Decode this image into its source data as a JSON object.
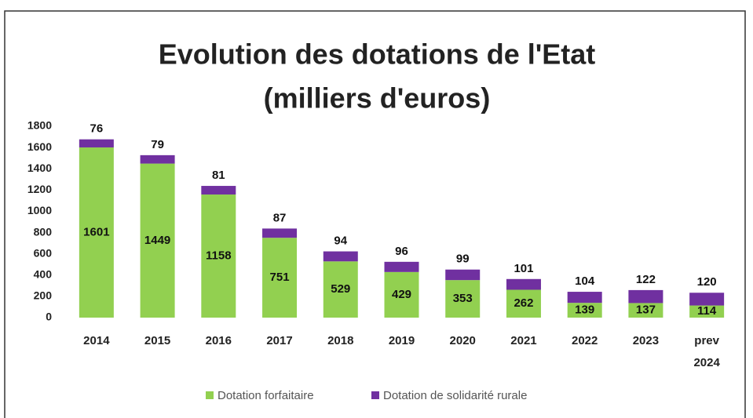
{
  "chart_data": {
    "type": "stacked_bar",
    "title": "Evolution des dotations de l'Etat",
    "subtitle": "(milliers d'euros)",
    "categories": [
      "2014",
      "2015",
      "2016",
      "2017",
      "2018",
      "2019",
      "2020",
      "2021",
      "2022",
      "2023",
      "prev 2024"
    ],
    "series": [
      {
        "name": "Dotation forfaitaire",
        "color": "#92d050",
        "values": [
          1601,
          1449,
          1158,
          751,
          529,
          429,
          353,
          262,
          139,
          137,
          114
        ]
      },
      {
        "name": "Dotation de solidarité rurale",
        "color": "#7030a0",
        "values": [
          76,
          79,
          81,
          87,
          94,
          96,
          99,
          101,
          104,
          122,
          120
        ]
      }
    ],
    "ylim": [
      0,
      1800
    ],
    "yticks": [
      0,
      200,
      400,
      600,
      800,
      1000,
      1200,
      1400,
      1600,
      1800
    ],
    "grid": false,
    "legend": "bottom"
  }
}
